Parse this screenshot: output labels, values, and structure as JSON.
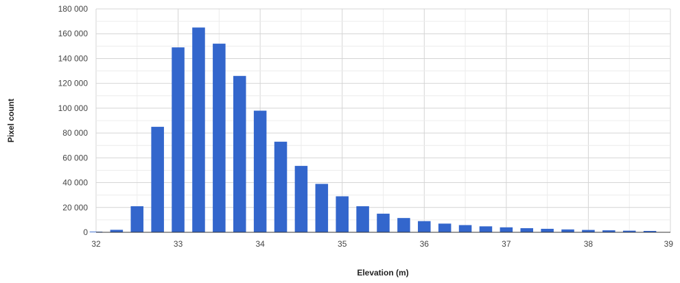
{
  "chart_data": {
    "type": "bar",
    "xlabel": "Elevation (m)",
    "ylabel": "Pixel count",
    "xlim": [
      32,
      39
    ],
    "ylim": [
      0,
      180000
    ],
    "x_ticks": [
      "32",
      "33",
      "34",
      "35",
      "36",
      "37",
      "38",
      "39"
    ],
    "y_ticks": [
      "0",
      "20 000",
      "40 000",
      "60 000",
      "80 000",
      "100 000",
      "120 000",
      "140 000",
      "160 000",
      "180 000"
    ],
    "bin_width": 0.25,
    "bar_color": "#3366cc",
    "grid": true,
    "x": [
      32.0,
      32.25,
      32.5,
      32.75,
      33.0,
      33.25,
      33.5,
      33.75,
      34.0,
      34.25,
      34.5,
      34.75,
      35.0,
      35.25,
      35.5,
      35.75,
      36.0,
      36.25,
      36.5,
      36.75,
      37.0,
      37.25,
      37.5,
      37.75,
      38.0,
      38.25,
      38.5,
      38.75
    ],
    "values": [
      500,
      2000,
      21000,
      85000,
      149000,
      165000,
      152000,
      126000,
      98000,
      73000,
      53500,
      39000,
      29000,
      21000,
      15000,
      11500,
      9000,
      7000,
      5800,
      4800,
      4000,
      3300,
      2800,
      2300,
      1900,
      1600,
      1300,
      1100
    ]
  }
}
